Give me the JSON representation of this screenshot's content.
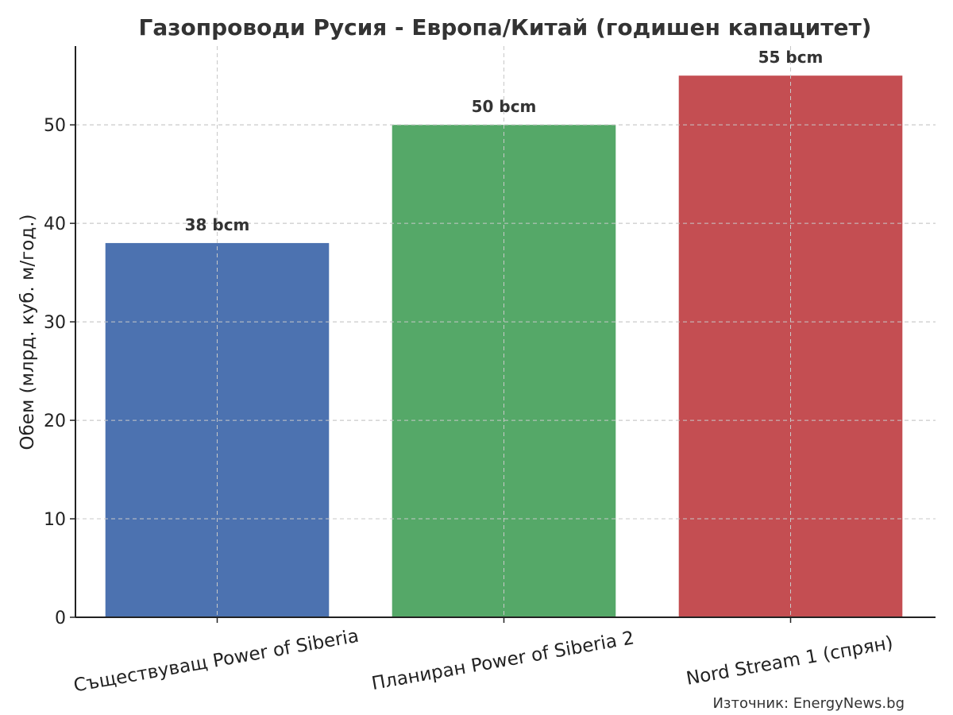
{
  "chart_data": {
    "type": "bar",
    "title": "Газопроводи Русия - Европа/Китай (годишен капацитет)",
    "xlabel": "",
    "ylabel": "Обем (млрд. куб. м/год.)",
    "categories": [
      "Съществуващ Power of Siberia",
      "Планиран Power of Siberia 2",
      "Nord Stream 1 (спрян)"
    ],
    "values": [
      38,
      50,
      55
    ],
    "data_labels": [
      "38 bcm",
      "50 bcm",
      "55 bcm"
    ],
    "colors": [
      "#4c72b0",
      "#55a868",
      "#c44e52"
    ],
    "ylim": [
      0,
      58
    ],
    "yticks": [
      0,
      10,
      20,
      30,
      40,
      50
    ],
    "grid": true,
    "source": "Източник: EnergyNews.bg"
  }
}
